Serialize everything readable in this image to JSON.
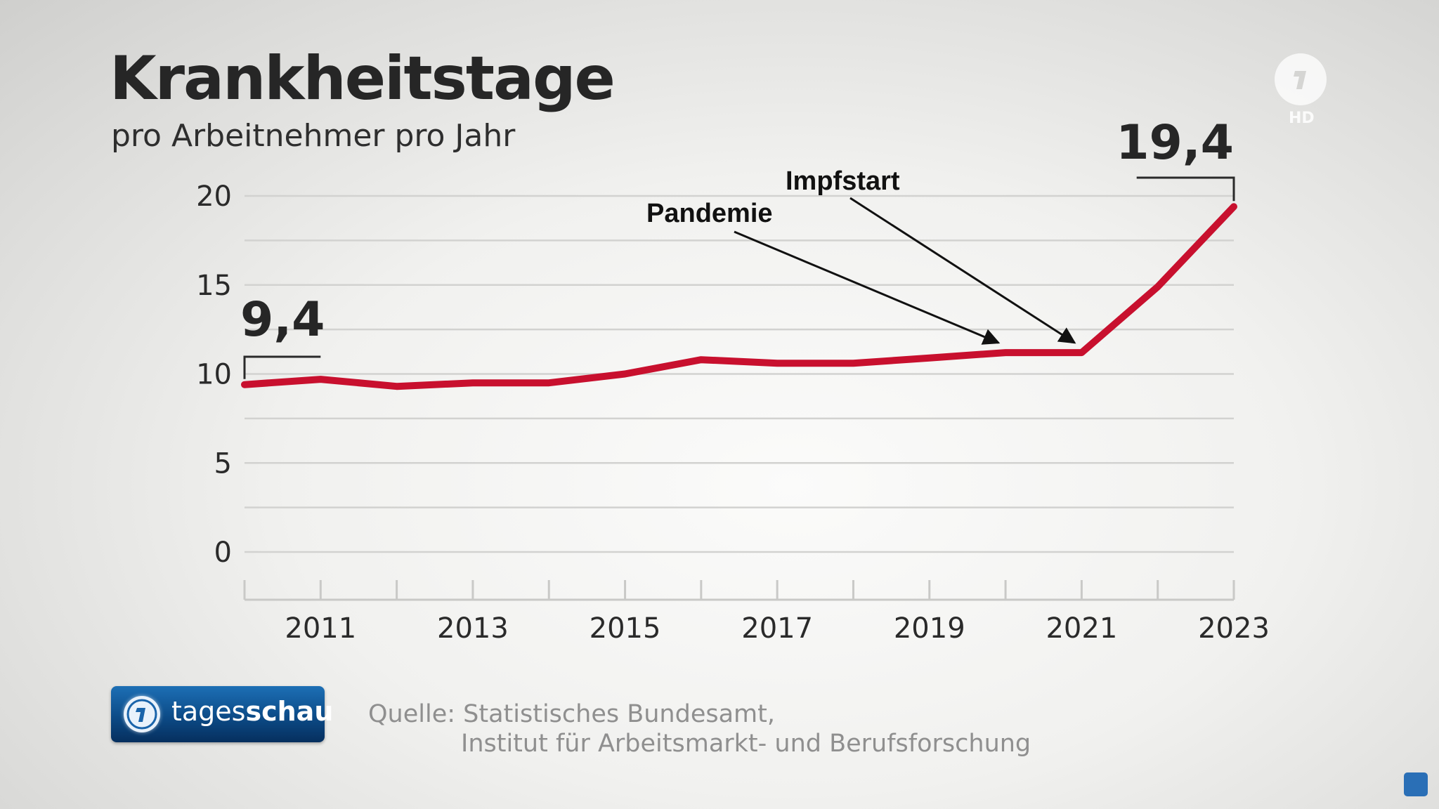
{
  "chart_data": {
    "type": "line",
    "title": "Krankheitstage",
    "subtitle": "pro Arbeitnehmer pro Jahr",
    "x": [
      2010,
      2011,
      2012,
      2013,
      2014,
      2015,
      2016,
      2017,
      2018,
      2019,
      2020,
      2021,
      2022,
      2023
    ],
    "series": [
      {
        "values": [
          9.4,
          9.7,
          9.3,
          9.5,
          9.5,
          10.0,
          10.8,
          10.6,
          10.6,
          10.9,
          11.2,
          11.2,
          14.9,
          19.4
        ]
      }
    ],
    "ylim": [
      0,
      20
    ],
    "y_ticks": [
      "0",
      "5",
      "10",
      "15",
      "20"
    ],
    "x_tick_labels": [
      "2011",
      "2013",
      "2015",
      "2017",
      "2019",
      "2021",
      "2023"
    ],
    "grid": true,
    "start_label": "9,4",
    "end_label": "19,4",
    "annotations": [
      {
        "text": "Pandemie",
        "x": 2020
      },
      {
        "text": "Impfstart",
        "x": 2021
      }
    ],
    "line_color": "#c8102e"
  },
  "brand": {
    "prefix": "tages",
    "suffix": "schau"
  },
  "source": {
    "line1": "Quelle: Statistisches Bundesamt,",
    "line2": "Institut für Arbeitsmarkt- und Berufsforschung"
  },
  "logo": {
    "hd": "HD"
  }
}
